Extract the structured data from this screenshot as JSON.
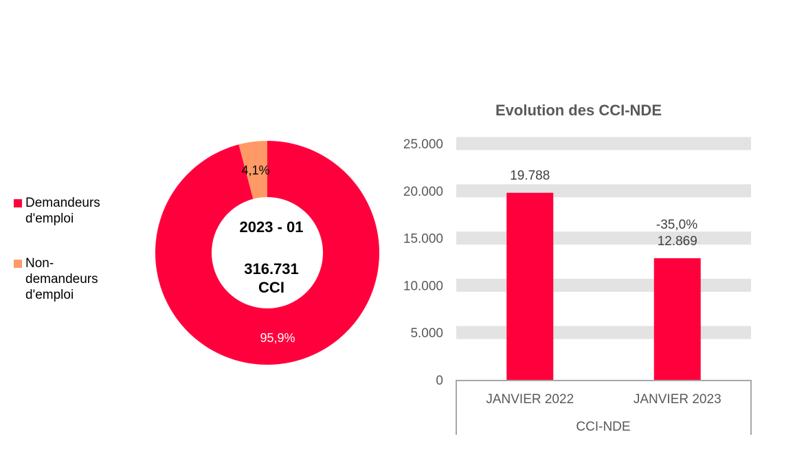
{
  "colors": {
    "demandeurs": "#ff003c",
    "non_demandeurs": "#ff9966",
    "band": "#e3e3e3",
    "axis": "#a6a6a6",
    "text": "#595959"
  },
  "chart_data": [
    {
      "type": "pie",
      "variant": "donut",
      "center_label": {
        "period": "2023 - 01",
        "total": "316.731",
        "unit": "CCI"
      },
      "legend_placement": "left",
      "slices": [
        {
          "name": "Demandeurs d'emploi",
          "value": 95.9,
          "label": "95,9%"
        },
        {
          "name": "Non-demandeurs d'emploi",
          "value": 4.1,
          "label": "4,1%"
        }
      ]
    },
    {
      "type": "bar",
      "title": "Evolution des CCI-NDE",
      "categories": [
        "JANVIER 2022",
        "JANVIER 2023"
      ],
      "group_label": "CCI-NDE",
      "values": [
        19788,
        12869
      ],
      "data_labels": [
        "19.788",
        "12.869"
      ],
      "change_label": "-35,0%",
      "ylim": [
        0,
        25000
      ],
      "yticks": [
        0,
        5000,
        10000,
        15000,
        20000,
        25000
      ],
      "ytick_labels": [
        "0",
        "5.000",
        "10.000",
        "15.000",
        "20.000",
        "25.000"
      ],
      "grid": "banded"
    }
  ]
}
